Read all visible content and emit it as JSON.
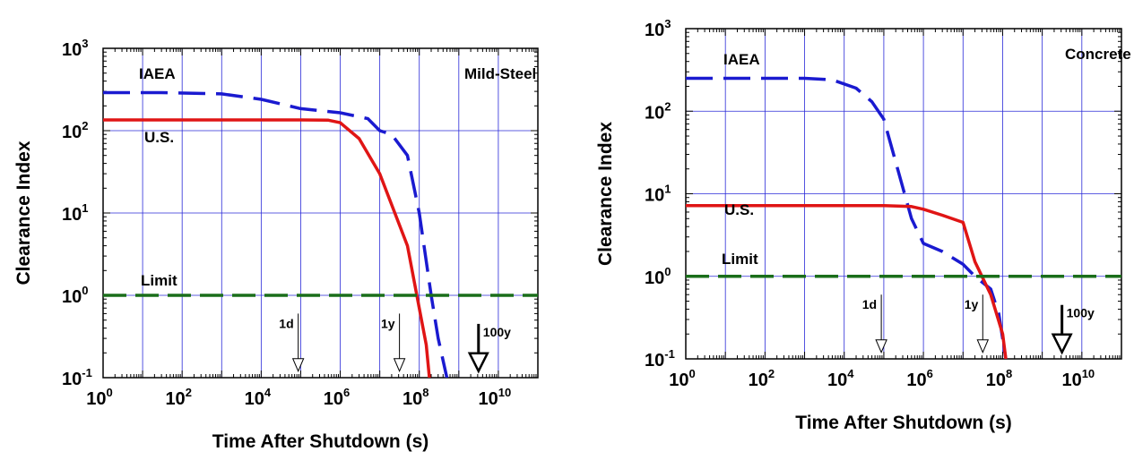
{
  "chart_data": [
    {
      "type": "line",
      "panel_label": "Mild-Steel",
      "xlabel": "Time After Shutdown (s)",
      "ylabel": "Clearance Index",
      "x_scale": "log",
      "y_scale": "log",
      "xlim": [
        1,
        100000000000.0
      ],
      "ylim": [
        0.1,
        1000
      ],
      "x_ticks": [
        {
          "value": 1,
          "base": "10",
          "exp": "0"
        },
        {
          "value": 100,
          "base": "10",
          "exp": "2"
        },
        {
          "value": 10000,
          "base": "10",
          "exp": "4"
        },
        {
          "value": 1000000,
          "base": "10",
          "exp": "6"
        },
        {
          "value": 100000000,
          "base": "10",
          "exp": "8"
        },
        {
          "value": 10000000000,
          "base": "10",
          "exp": "10"
        }
      ],
      "y_ticks": [
        {
          "value": 0.1,
          "base": "10",
          "exp": "-1"
        },
        {
          "value": 1,
          "base": "10",
          "exp": "0"
        },
        {
          "value": 10,
          "base": "10",
          "exp": "1"
        },
        {
          "value": 100,
          "base": "10",
          "exp": "2"
        },
        {
          "value": 1000,
          "base": "10",
          "exp": "3"
        }
      ],
      "grid": true,
      "series": [
        {
          "name": "IAEA",
          "color": "#1a1ad0",
          "style": "dashed",
          "x": [
            1,
            30,
            1000,
            10000,
            100000,
            1000000,
            5000000,
            10000000,
            20000000,
            50000000,
            100000000,
            200000000,
            300000000,
            500000000
          ],
          "y": [
            290,
            290,
            280,
            240,
            185,
            165,
            140,
            100,
            90,
            50,
            10,
            1.0,
            0.3,
            0.1
          ]
        },
        {
          "name": "U.S.",
          "color": "#e01515",
          "style": "solid",
          "x": [
            1,
            10,
            1000,
            100000,
            500000,
            1000000,
            3000000,
            10000000,
            50000000,
            100000000,
            150000000,
            180000000
          ],
          "y": [
            135,
            135,
            135,
            135,
            134,
            125,
            80,
            30,
            4,
            0.7,
            0.25,
            0.1
          ]
        },
        {
          "name": "Limit",
          "color": "#1a6e1a",
          "style": "dashed",
          "x": [
            1,
            100000000000
          ],
          "y": [
            1,
            1
          ]
        }
      ],
      "annotations": [
        {
          "text": "1d",
          "x": 86400,
          "y_from": 0.6,
          "y_to": 0.12,
          "arrow": "small"
        },
        {
          "text": "1y",
          "x": 31500000,
          "y_from": 0.6,
          "y_to": 0.12,
          "arrow": "small"
        },
        {
          "text": "100y",
          "x": 3150000000,
          "y_from": 0.45,
          "y_to": 0.12,
          "arrow": "large"
        }
      ]
    },
    {
      "type": "line",
      "panel_label": "Concrete",
      "xlabel": "Time After Shutdown (s)",
      "ylabel": "Clearance Index",
      "x_scale": "log",
      "y_scale": "log",
      "xlim": [
        1,
        100000000000.0
      ],
      "ylim": [
        0.1,
        1000
      ],
      "x_ticks": [
        {
          "value": 1,
          "base": "10",
          "exp": "0"
        },
        {
          "value": 100,
          "base": "10",
          "exp": "2"
        },
        {
          "value": 10000,
          "base": "10",
          "exp": "4"
        },
        {
          "value": 1000000,
          "base": "10",
          "exp": "6"
        },
        {
          "value": 100000000,
          "base": "10",
          "exp": "8"
        },
        {
          "value": 10000000000,
          "base": "10",
          "exp": "10"
        }
      ],
      "y_ticks": [
        {
          "value": 0.1,
          "base": "10",
          "exp": "-1"
        },
        {
          "value": 1,
          "base": "10",
          "exp": "0"
        },
        {
          "value": 10,
          "base": "10",
          "exp": "1"
        },
        {
          "value": 100,
          "base": "10",
          "exp": "2"
        },
        {
          "value": 1000,
          "base": "10",
          "exp": "3"
        }
      ],
      "grid": true,
      "series": [
        {
          "name": "IAEA",
          "color": "#1a1ad0",
          "style": "dashed",
          "x": [
            1,
            30,
            1000,
            5000,
            20000,
            50000,
            100000,
            300000,
            500000,
            1000000,
            3000000,
            10000000,
            20000000,
            50000000,
            80000000,
            120000000
          ],
          "y": [
            250,
            250,
            250,
            240,
            190,
            130,
            80,
            12,
            5,
            2.5,
            2.0,
            1.4,
            1.0,
            0.7,
            0.35,
            0.1
          ]
        },
        {
          "name": "U.S.",
          "color": "#e01515",
          "style": "solid",
          "x": [
            1,
            10,
            1000,
            100000,
            500000,
            1000000,
            3000000,
            10000000,
            20000000,
            50000000,
            100000000,
            120000000
          ],
          "y": [
            7.2,
            7.2,
            7.2,
            7.2,
            7.0,
            6.5,
            5.5,
            4.5,
            1.5,
            0.6,
            0.2,
            0.1
          ]
        },
        {
          "name": "Limit",
          "color": "#1a6e1a",
          "style": "dashed",
          "x": [
            1,
            100000000000
          ],
          "y": [
            1,
            1
          ]
        }
      ],
      "annotations": [
        {
          "text": "1d",
          "x": 86400,
          "y_from": 0.6,
          "y_to": 0.12,
          "arrow": "small"
        },
        {
          "text": "1y",
          "x": 31500000,
          "y_from": 0.6,
          "y_to": 0.12,
          "arrow": "small"
        },
        {
          "text": "100y",
          "x": 3150000000,
          "y_from": 0.45,
          "y_to": 0.12,
          "arrow": "large"
        }
      ]
    }
  ]
}
